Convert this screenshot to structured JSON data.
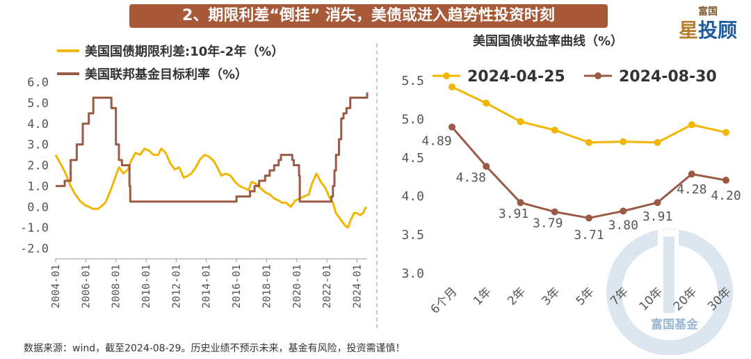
{
  "banner": {
    "title": "2、期限利差“倒挂” 消失，美债或进入趋势性投资时刻"
  },
  "brand": {
    "top": "富国",
    "name_a": "星",
    "name_b": "投顾"
  },
  "footnote": "数据来源：wind，截至2024-08-29。历史业绩不预示未来，基金有风险，投资需谨慎！",
  "watermark_text": "富国基金",
  "colors": {
    "gold": "#f2b600",
    "brown": "#9b5a46",
    "banner": "#a85a38"
  },
  "chart_data": [
    {
      "type": "line",
      "title": "",
      "yticks": [
        "6.0",
        "5.0",
        "4.0",
        "3.0",
        "2.0",
        "1.0",
        "0.0",
        "-1.0",
        "-2.0"
      ],
      "ylim": [
        -2.0,
        6.0
      ],
      "xticks": [
        "2004-01",
        "2006-01",
        "2008-01",
        "2010-01",
        "2012-01",
        "2014-01",
        "2016-01",
        "2018-01",
        "2020-01",
        "2022-01",
        "2024-01"
      ],
      "xlim": [
        2004.0,
        2024.67
      ],
      "grid": false,
      "legend_position": "top-left",
      "series": [
        {
          "name": "美国国债期限利差:10年-2年（%）",
          "color": "#f2b600",
          "x": [
            2004.0,
            2004.3,
            2004.6,
            2005.0,
            2005.3,
            2005.6,
            2005.9,
            2006.2,
            2006.5,
            2006.8,
            2007.0,
            2007.3,
            2007.6,
            2007.9,
            2008.2,
            2008.5,
            2008.8,
            2009.0,
            2009.3,
            2009.6,
            2009.9,
            2010.2,
            2010.5,
            2010.8,
            2011.0,
            2011.3,
            2011.6,
            2011.9,
            2012.2,
            2012.5,
            2012.8,
            2013.0,
            2013.3,
            2013.6,
            2013.9,
            2014.2,
            2014.5,
            2014.8,
            2015.0,
            2015.3,
            2015.6,
            2015.9,
            2016.2,
            2016.5,
            2016.8,
            2017.0,
            2017.3,
            2017.6,
            2017.9,
            2018.2,
            2018.5,
            2018.8,
            2019.0,
            2019.3,
            2019.6,
            2019.9,
            2020.2,
            2020.5,
            2020.8,
            2021.0,
            2021.3,
            2021.6,
            2021.9,
            2022.2,
            2022.4,
            2022.6,
            2022.8,
            2023.0,
            2023.2,
            2023.4,
            2023.6,
            2023.8,
            2024.0,
            2024.2,
            2024.4,
            2024.6
          ],
          "y": [
            2.5,
            2.1,
            1.7,
            1.0,
            0.6,
            0.3,
            0.1,
            0.0,
            -0.1,
            -0.1,
            0.0,
            0.2,
            0.7,
            1.3,
            1.9,
            1.6,
            1.8,
            2.2,
            2.6,
            2.5,
            2.8,
            2.7,
            2.5,
            2.5,
            2.8,
            2.6,
            2.1,
            1.8,
            1.9,
            1.4,
            1.5,
            1.6,
            1.9,
            2.3,
            2.5,
            2.4,
            2.2,
            1.8,
            1.5,
            1.6,
            1.5,
            1.2,
            1.0,
            0.9,
            0.8,
            1.2,
            1.1,
            0.9,
            0.7,
            0.6,
            0.4,
            0.3,
            0.2,
            0.2,
            0.0,
            0.3,
            0.4,
            0.5,
            0.6,
            1.1,
            1.6,
            1.2,
            0.9,
            0.4,
            0.2,
            -0.3,
            -0.5,
            -0.7,
            -0.9,
            -1.0,
            -0.6,
            -0.3,
            -0.3,
            -0.4,
            -0.3,
            0.0
          ]
        },
        {
          "name": "美国联邦基金目标利率（%）",
          "color": "#9b5a46",
          "x": [
            2004.0,
            2004.5,
            2004.6,
            2005.0,
            2005.4,
            2005.8,
            2006.2,
            2006.5,
            2007.6,
            2007.7,
            2008.0,
            2008.2,
            2008.4,
            2008.9,
            2008.95,
            2015.9,
            2016.0,
            2016.9,
            2017.2,
            2017.5,
            2017.9,
            2018.2,
            2018.5,
            2018.8,
            2018.95,
            2019.5,
            2019.7,
            2019.8,
            2020.15,
            2020.2,
            2022.2,
            2022.3,
            2022.4,
            2022.5,
            2022.6,
            2022.8,
            2022.95,
            2023.1,
            2023.3,
            2023.55,
            2024.67
          ],
          "y": [
            1.0,
            1.0,
            1.25,
            2.25,
            3.0,
            4.0,
            4.5,
            5.25,
            5.25,
            4.75,
            3.0,
            2.25,
            2.0,
            1.0,
            0.25,
            0.25,
            0.5,
            0.75,
            1.0,
            1.25,
            1.5,
            1.75,
            2.0,
            2.25,
            2.5,
            2.5,
            2.25,
            2.0,
            1.5,
            0.25,
            0.25,
            0.5,
            1.0,
            1.75,
            2.5,
            3.25,
            4.25,
            4.5,
            4.75,
            5.25,
            5.5
          ]
        }
      ]
    },
    {
      "type": "line",
      "title": "美国国债收益率曲线（%）",
      "categories": [
        "6个月",
        "1年",
        "2年",
        "3年",
        "5年",
        "7年",
        "10年",
        "20年",
        "30年"
      ],
      "yticks": [
        "5.5",
        "5.0",
        "4.5",
        "4.0",
        "3.5",
        "3.0"
      ],
      "ylim": [
        3.0,
        5.5
      ],
      "grid": false,
      "legend_position": "top",
      "series": [
        {
          "name": "2024-04-25",
          "color": "#f2b600",
          "values": [
            5.41,
            5.2,
            4.96,
            4.85,
            4.69,
            4.7,
            4.69,
            4.92,
            4.82
          ]
        },
        {
          "name": "2024-08-30",
          "color": "#9b5a46",
          "values": [
            4.89,
            4.38,
            3.91,
            3.79,
            3.71,
            3.8,
            3.91,
            4.28,
            4.2
          ],
          "labels": [
            "4.89",
            "4.38",
            "3.91",
            "3.79",
            "3.71",
            "3.80",
            "3.91",
            "4.28",
            "4.20"
          ]
        }
      ]
    }
  ]
}
